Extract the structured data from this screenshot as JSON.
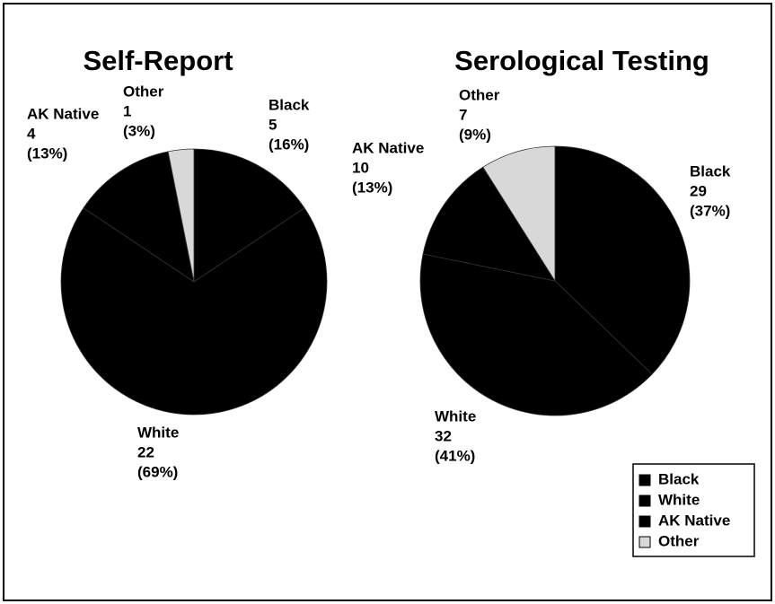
{
  "chart_data": [
    {
      "type": "pie",
      "title": "Self-Report",
      "categories": [
        "Black",
        "White",
        "AK Native",
        "Other"
      ],
      "values": [
        5,
        22,
        4,
        1
      ],
      "percent_labels": [
        "(16%)",
        "(69%)",
        "(13%)",
        "(3%)"
      ],
      "colors": [
        "#000000",
        "#000000",
        "#000000",
        "#d8d8d8"
      ]
    },
    {
      "type": "pie",
      "title": "Serological Testing",
      "categories": [
        "Black",
        "White",
        "AK Native",
        "Other"
      ],
      "values": [
        29,
        32,
        10,
        7
      ],
      "percent_labels": [
        "(37%)",
        "(41%)",
        "(13%)",
        "(9%)"
      ],
      "colors": [
        "#000000",
        "#000000",
        "#000000",
        "#d8d8d8"
      ]
    }
  ]
}
